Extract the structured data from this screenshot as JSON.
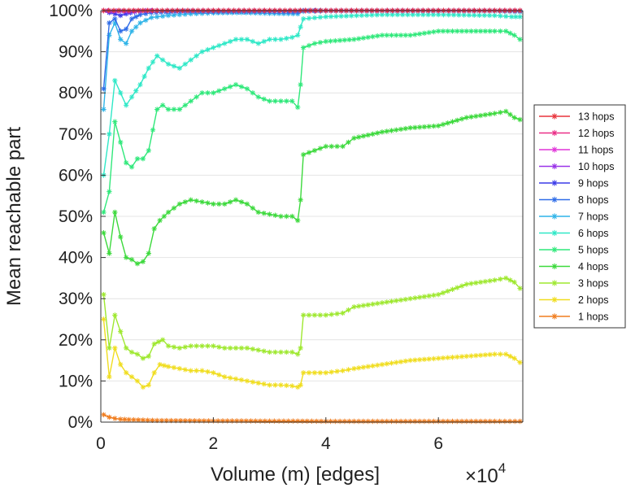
{
  "chart_data": {
    "type": "line",
    "title": "",
    "xlabel": "Volume (m) [edges]",
    "ylabel": "Mean reachable part",
    "x_multiplier": {
      "base": "×10",
      "exponent": "4"
    },
    "xlim": [
      0,
      7.5
    ],
    "ylim": [
      0,
      100
    ],
    "xticks": [
      0,
      2,
      4,
      6
    ],
    "xtick_labels": [
      "0",
      "2",
      "4",
      "6"
    ],
    "yticks": [
      0,
      10,
      20,
      30,
      40,
      50,
      60,
      70,
      80,
      90,
      100
    ],
    "ytick_labels": [
      "0%",
      "10%",
      "20%",
      "30%",
      "40%",
      "50%",
      "60%",
      "70%",
      "80%",
      "90%",
      "100%"
    ],
    "grid": "horizontal",
    "legend_position": "right",
    "marker": "star",
    "series": [
      {
        "name": "13 hops",
        "color": "#e8343c",
        "points": [
          [
            0.05,
            100
          ],
          [
            0.5,
            100
          ],
          [
            1,
            100
          ],
          [
            2,
            100
          ],
          [
            3,
            100
          ],
          [
            4,
            100
          ],
          [
            5,
            100
          ],
          [
            6,
            100
          ],
          [
            7,
            100
          ],
          [
            7.45,
            100
          ]
        ]
      },
      {
        "name": "12 hops",
        "color": "#ea2f87",
        "points": [
          [
            0.05,
            100
          ],
          [
            0.5,
            100
          ],
          [
            1,
            100
          ],
          [
            2,
            100
          ],
          [
            3,
            100
          ],
          [
            4,
            100
          ],
          [
            5,
            100
          ],
          [
            6,
            100
          ],
          [
            7,
            100
          ],
          [
            7.45,
            100
          ]
        ]
      },
      {
        "name": "11 hops",
        "color": "#e033d9",
        "points": [
          [
            0.05,
            100
          ],
          [
            0.5,
            100
          ],
          [
            1,
            100
          ],
          [
            2,
            100
          ],
          [
            3,
            100
          ],
          [
            4,
            100
          ],
          [
            5,
            100
          ],
          [
            6,
            100
          ],
          [
            7,
            100
          ],
          [
            7.45,
            100
          ]
        ]
      },
      {
        "name": "10 hops",
        "color": "#9933e8",
        "points": [
          [
            0.05,
            100
          ],
          [
            0.2,
            99.8
          ],
          [
            0.35,
            99.9
          ],
          [
            0.5,
            99.7
          ],
          [
            0.8,
            100
          ],
          [
            1,
            100
          ],
          [
            2,
            100
          ],
          [
            3,
            100
          ],
          [
            4,
            100
          ],
          [
            5,
            100
          ],
          [
            6,
            100
          ],
          [
            7,
            100
          ],
          [
            7.45,
            100
          ]
        ]
      },
      {
        "name": "9 hops",
        "color": "#3a3ae8",
        "points": [
          [
            0.05,
            100
          ],
          [
            0.15,
            99.5
          ],
          [
            0.25,
            99.2
          ],
          [
            0.35,
            98.8
          ],
          [
            0.45,
            99.2
          ],
          [
            0.6,
            99.7
          ],
          [
            0.8,
            99.9
          ],
          [
            1,
            100
          ],
          [
            2,
            100
          ],
          [
            3,
            100
          ],
          [
            4,
            100
          ],
          [
            5,
            100
          ],
          [
            6,
            100
          ],
          [
            7,
            100
          ],
          [
            7.45,
            100
          ]
        ]
      },
      {
        "name": "8 hops",
        "color": "#2f6de8",
        "points": [
          [
            0.05,
            81
          ],
          [
            0.15,
            97
          ],
          [
            0.25,
            98
          ],
          [
            0.35,
            95
          ],
          [
            0.45,
            95.5
          ],
          [
            0.55,
            98
          ],
          [
            0.7,
            99
          ],
          [
            0.9,
            99.5
          ],
          [
            1.5,
            99.8
          ],
          [
            2,
            99.7
          ],
          [
            3,
            99.7
          ],
          [
            3.5,
            99.6
          ],
          [
            3.6,
            100
          ],
          [
            4,
            100
          ],
          [
            5,
            100
          ],
          [
            6,
            100
          ],
          [
            7,
            100
          ],
          [
            7.45,
            99.9
          ]
        ]
      },
      {
        "name": "7 hops",
        "color": "#2fb4e8",
        "points": [
          [
            0.05,
            76
          ],
          [
            0.15,
            94
          ],
          [
            0.25,
            97
          ],
          [
            0.35,
            93
          ],
          [
            0.45,
            92
          ],
          [
            0.55,
            95
          ],
          [
            0.7,
            97
          ],
          [
            0.9,
            98.3
          ],
          [
            1.2,
            98.8
          ],
          [
            1.6,
            99.2
          ],
          [
            2,
            99.4
          ],
          [
            2.5,
            99.5
          ],
          [
            3,
            99.3
          ],
          [
            3.5,
            99.2
          ],
          [
            3.6,
            99.8
          ],
          [
            4,
            99.9
          ],
          [
            5,
            99.9
          ],
          [
            6,
            99.9
          ],
          [
            7,
            99.9
          ],
          [
            7.45,
            99.7
          ]
        ]
      },
      {
        "name": "6 hops",
        "color": "#2fe8c7",
        "points": [
          [
            0.05,
            60
          ],
          [
            0.15,
            70
          ],
          [
            0.25,
            83
          ],
          [
            0.35,
            80
          ],
          [
            0.45,
            77
          ],
          [
            0.55,
            79
          ],
          [
            0.7,
            82
          ],
          [
            0.85,
            86
          ],
          [
            1,
            89
          ],
          [
            1.2,
            87
          ],
          [
            1.4,
            86
          ],
          [
            1.6,
            88
          ],
          [
            1.8,
            90
          ],
          [
            2,
            91
          ],
          [
            2.2,
            92
          ],
          [
            2.4,
            93
          ],
          [
            2.6,
            93
          ],
          [
            2.8,
            92
          ],
          [
            3,
            93
          ],
          [
            3.2,
            93
          ],
          [
            3.4,
            93.5
          ],
          [
            3.5,
            94
          ],
          [
            3.55,
            96
          ],
          [
            3.6,
            98
          ],
          [
            4,
            98.5
          ],
          [
            5,
            99
          ],
          [
            6,
            99
          ],
          [
            7,
            98.8
          ],
          [
            7.3,
            98.5
          ],
          [
            7.45,
            98.5
          ]
        ]
      },
      {
        "name": "5 hops",
        "color": "#2fe87a",
        "points": [
          [
            0.05,
            51
          ],
          [
            0.15,
            56
          ],
          [
            0.25,
            73
          ],
          [
            0.35,
            68
          ],
          [
            0.45,
            63
          ],
          [
            0.55,
            62
          ],
          [
            0.65,
            64
          ],
          [
            0.75,
            64
          ],
          [
            0.85,
            66
          ],
          [
            1,
            76
          ],
          [
            1.1,
            77
          ],
          [
            1.2,
            76
          ],
          [
            1.4,
            76
          ],
          [
            1.6,
            78
          ],
          [
            1.8,
            80
          ],
          [
            2,
            80
          ],
          [
            2.2,
            81
          ],
          [
            2.4,
            82
          ],
          [
            2.6,
            81
          ],
          [
            2.8,
            79
          ],
          [
            3,
            78
          ],
          [
            3.2,
            78
          ],
          [
            3.4,
            78
          ],
          [
            3.5,
            76.5
          ],
          [
            3.55,
            82
          ],
          [
            3.6,
            91
          ],
          [
            3.8,
            92
          ],
          [
            4,
            92.5
          ],
          [
            4.5,
            93
          ],
          [
            5,
            94
          ],
          [
            5.5,
            94
          ],
          [
            6,
            95
          ],
          [
            6.5,
            95
          ],
          [
            7,
            95
          ],
          [
            7.2,
            95
          ],
          [
            7.35,
            94
          ],
          [
            7.45,
            93
          ]
        ]
      },
      {
        "name": "4 hops",
        "color": "#3cd93c",
        "points": [
          [
            0.05,
            46
          ],
          [
            0.15,
            41
          ],
          [
            0.25,
            51
          ],
          [
            0.35,
            45
          ],
          [
            0.45,
            40
          ],
          [
            0.55,
            39.5
          ],
          [
            0.65,
            38.5
          ],
          [
            0.75,
            39
          ],
          [
            0.85,
            41
          ],
          [
            0.95,
            47
          ],
          [
            1.05,
            49
          ],
          [
            1.2,
            51
          ],
          [
            1.4,
            53
          ],
          [
            1.6,
            54
          ],
          [
            1.8,
            53.5
          ],
          [
            2,
            53
          ],
          [
            2.2,
            53
          ],
          [
            2.4,
            54
          ],
          [
            2.6,
            53
          ],
          [
            2.8,
            51
          ],
          [
            3,
            50.5
          ],
          [
            3.2,
            50
          ],
          [
            3.4,
            50
          ],
          [
            3.5,
            49
          ],
          [
            3.55,
            54
          ],
          [
            3.6,
            65
          ],
          [
            3.8,
            66
          ],
          [
            4,
            67
          ],
          [
            4.3,
            67
          ],
          [
            4.5,
            69
          ],
          [
            5,
            70.5
          ],
          [
            5.5,
            71.5
          ],
          [
            6,
            72
          ],
          [
            6.5,
            74
          ],
          [
            7,
            75
          ],
          [
            7.2,
            75.5
          ],
          [
            7.35,
            74
          ],
          [
            7.45,
            73.5
          ]
        ]
      },
      {
        "name": "3 hops",
        "color": "#9ee82f",
        "points": [
          [
            0.05,
            31
          ],
          [
            0.15,
            18
          ],
          [
            0.25,
            26
          ],
          [
            0.35,
            22
          ],
          [
            0.45,
            18
          ],
          [
            0.55,
            17
          ],
          [
            0.65,
            16.5
          ],
          [
            0.75,
            15.5
          ],
          [
            0.85,
            16
          ],
          [
            0.95,
            19
          ],
          [
            1.1,
            20
          ],
          [
            1.2,
            18.5
          ],
          [
            1.4,
            18
          ],
          [
            1.6,
            18.5
          ],
          [
            1.8,
            18.5
          ],
          [
            2,
            18.5
          ],
          [
            2.2,
            18
          ],
          [
            2.4,
            18
          ],
          [
            2.6,
            18
          ],
          [
            2.8,
            17.5
          ],
          [
            3,
            17
          ],
          [
            3.2,
            17
          ],
          [
            3.4,
            17
          ],
          [
            3.5,
            16.5
          ],
          [
            3.55,
            18
          ],
          [
            3.6,
            26
          ],
          [
            3.8,
            26
          ],
          [
            4,
            26
          ],
          [
            4.3,
            26.5
          ],
          [
            4.5,
            28
          ],
          [
            5,
            29
          ],
          [
            5.5,
            30
          ],
          [
            6,
            31
          ],
          [
            6.5,
            33.5
          ],
          [
            7,
            34.5
          ],
          [
            7.2,
            35
          ],
          [
            7.35,
            34
          ],
          [
            7.45,
            32.5
          ]
        ]
      },
      {
        "name": "2 hops",
        "color": "#f0dd1f",
        "points": [
          [
            0.05,
            25
          ],
          [
            0.15,
            11
          ],
          [
            0.25,
            18
          ],
          [
            0.35,
            14
          ],
          [
            0.45,
            12
          ],
          [
            0.55,
            11
          ],
          [
            0.65,
            10
          ],
          [
            0.75,
            8.5
          ],
          [
            0.85,
            9
          ],
          [
            0.95,
            12
          ],
          [
            1.05,
            14
          ],
          [
            1.2,
            13.5
          ],
          [
            1.4,
            13
          ],
          [
            1.6,
            12.5
          ],
          [
            1.8,
            12.5
          ],
          [
            2,
            12
          ],
          [
            2.2,
            11
          ],
          [
            2.4,
            10.5
          ],
          [
            2.6,
            10
          ],
          [
            2.8,
            9.5
          ],
          [
            3,
            9
          ],
          [
            3.2,
            9
          ],
          [
            3.4,
            8.8
          ],
          [
            3.5,
            8.5
          ],
          [
            3.55,
            9
          ],
          [
            3.6,
            12
          ],
          [
            3.8,
            12
          ],
          [
            4,
            12
          ],
          [
            4.3,
            12.5
          ],
          [
            4.5,
            13
          ],
          [
            5,
            14
          ],
          [
            5.5,
            15
          ],
          [
            6,
            15.5
          ],
          [
            6.5,
            16
          ],
          [
            7,
            16.5
          ],
          [
            7.2,
            16.5
          ],
          [
            7.35,
            15.5
          ],
          [
            7.45,
            14.5
          ]
        ]
      },
      {
        "name": "1 hops",
        "color": "#f07d1f",
        "points": [
          [
            0.05,
            1.8
          ],
          [
            0.15,
            1.2
          ],
          [
            0.25,
            0.9
          ],
          [
            0.35,
            0.7
          ],
          [
            0.5,
            0.6
          ],
          [
            0.75,
            0.5
          ],
          [
            1,
            0.4
          ],
          [
            1.5,
            0.35
          ],
          [
            2,
            0.3
          ],
          [
            2.5,
            0.3
          ],
          [
            3,
            0.25
          ],
          [
            3.5,
            0.25
          ],
          [
            4,
            0.2
          ],
          [
            4.5,
            0.2
          ],
          [
            5,
            0.2
          ],
          [
            5.5,
            0.2
          ],
          [
            6,
            0.2
          ],
          [
            6.5,
            0.2
          ],
          [
            7,
            0.2
          ],
          [
            7.45,
            0.2
          ]
        ]
      }
    ]
  }
}
